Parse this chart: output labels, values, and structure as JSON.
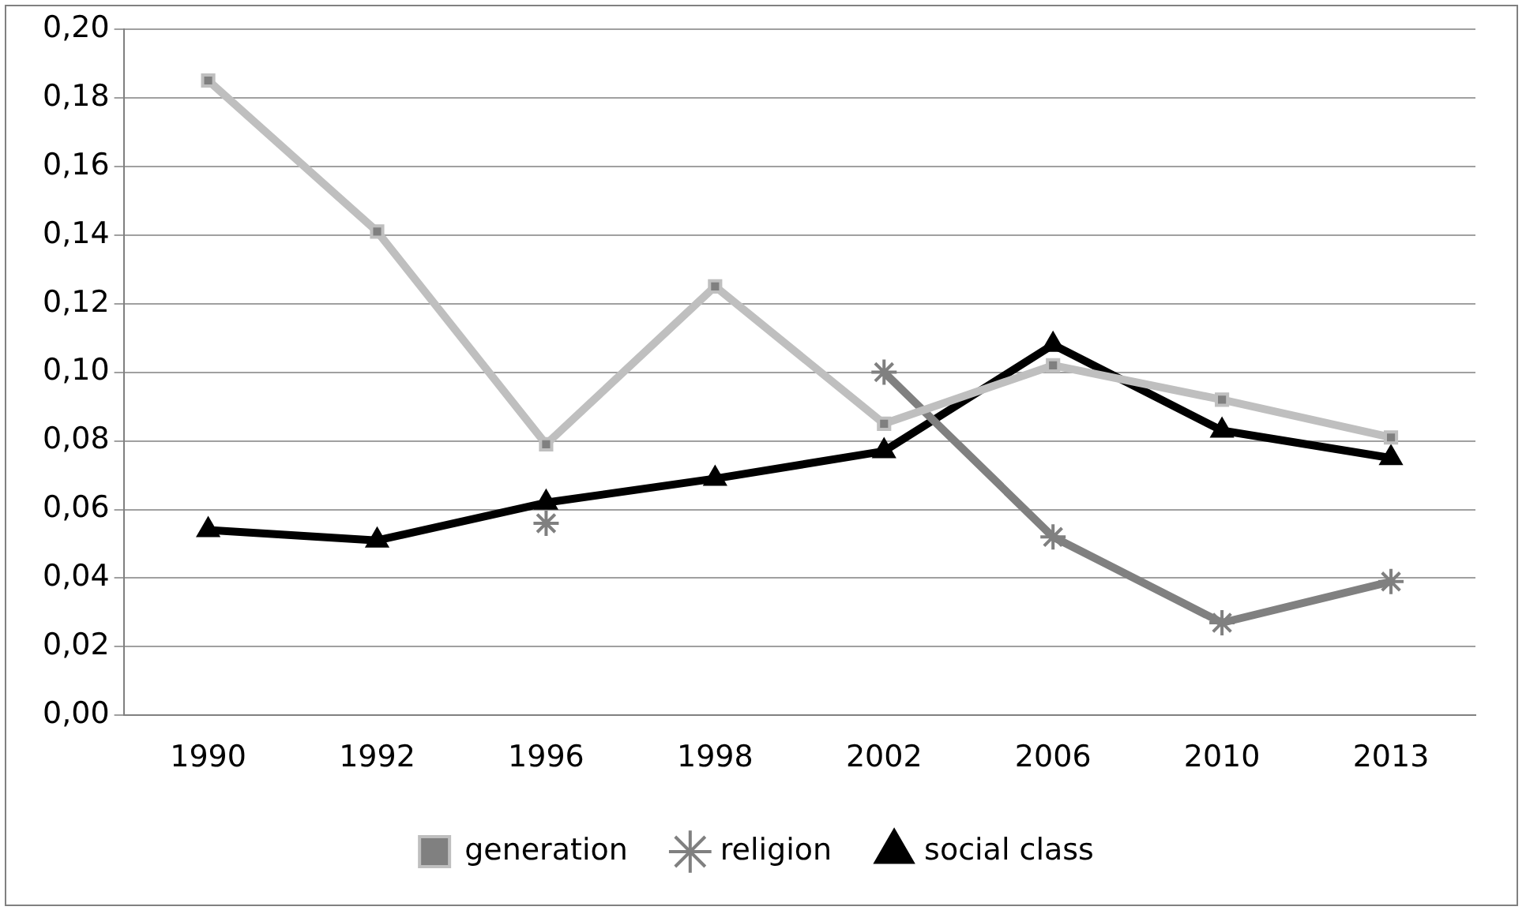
{
  "chart_data": {
    "type": "line",
    "categories": [
      "1990",
      "1992",
      "1996",
      "1998",
      "2002",
      "2006",
      "2010",
      "2013"
    ],
    "series": [
      {
        "name": "generation",
        "color": "#bfbfbf",
        "marker": "square",
        "values": [
          0.185,
          0.141,
          0.079,
          0.125,
          0.085,
          0.102,
          0.092,
          0.081
        ]
      },
      {
        "name": "religion",
        "color": "#808080",
        "marker": "cross",
        "values": [
          null,
          null,
          0.056,
          null,
          0.1,
          0.052,
          0.027,
          0.039
        ]
      },
      {
        "name": "social class",
        "color": "#000000",
        "marker": "triangle",
        "values": [
          0.054,
          0.051,
          0.062,
          0.069,
          0.077,
          0.108,
          0.083,
          0.075
        ]
      }
    ],
    "ylim": [
      0,
      0.2
    ],
    "yticks": [
      {
        "value": 0,
        "label": "0,00"
      },
      {
        "value": 0.02,
        "label": "0,02"
      },
      {
        "value": 0.04,
        "label": "0,04"
      },
      {
        "value": 0.06,
        "label": "0,06"
      },
      {
        "value": 0.08,
        "label": "0,08"
      },
      {
        "value": 0.1,
        "label": "0,10"
      },
      {
        "value": 0.12,
        "label": "0,12"
      },
      {
        "value": 0.14,
        "label": "0,14"
      },
      {
        "value": 0.16,
        "label": "0,16"
      },
      {
        "value": 0.18,
        "label": "0,18"
      },
      {
        "value": 0.2,
        "label": "0,20"
      }
    ],
    "grid": "y",
    "legend": "bottom"
  }
}
